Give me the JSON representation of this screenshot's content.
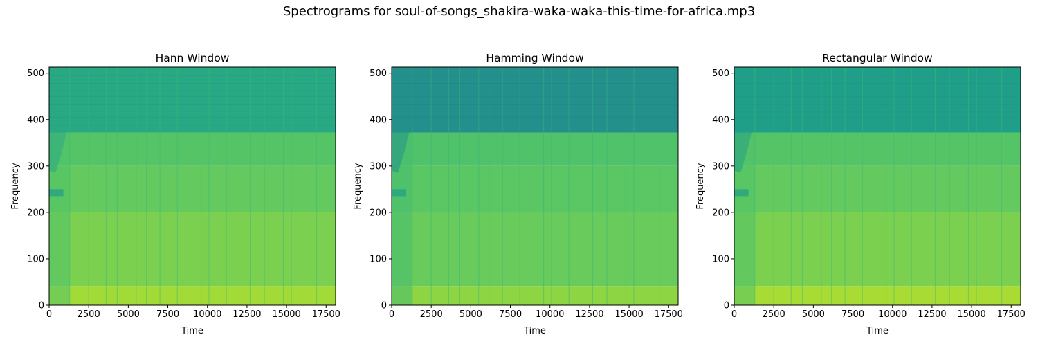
{
  "figure": {
    "suptitle": "Spectrograms for soul-of-songs_shakira-waka-waka-this-time-for-africa.mp3"
  },
  "chart_data": [
    {
      "type": "heatmap",
      "title": "Hann Window",
      "xlabel": "Time",
      "ylabel": "Frequency",
      "xlim": [
        0,
        18100
      ],
      "ylim": [
        0,
        513
      ],
      "xticks": [
        0,
        2500,
        5000,
        7500,
        10000,
        12500,
        15000,
        17500
      ],
      "yticks": [
        0,
        100,
        200,
        300,
        400,
        500
      ],
      "colormap": "viridis",
      "bands": [
        {
          "from": 0,
          "to": 40,
          "level": 0.86
        },
        {
          "from": 40,
          "to": 200,
          "level": 0.8
        },
        {
          "from": 200,
          "to": 300,
          "level": 0.76
        },
        {
          "from": 300,
          "to": 372,
          "level": 0.73
        },
        {
          "from": 372,
          "to": 513,
          "level": 0.6
        }
      ]
    },
    {
      "type": "heatmap",
      "title": "Hamming Window",
      "xlabel": "Time",
      "ylabel": "Frequency",
      "xlim": [
        0,
        18100
      ],
      "ylim": [
        0,
        513
      ],
      "xticks": [
        0,
        2500,
        5000,
        7500,
        10000,
        12500,
        15000,
        17500
      ],
      "yticks": [
        0,
        100,
        200,
        300,
        400,
        500
      ],
      "colormap": "viridis",
      "bands": [
        {
          "from": 0,
          "to": 40,
          "level": 0.83
        },
        {
          "from": 40,
          "to": 200,
          "level": 0.77
        },
        {
          "from": 200,
          "to": 300,
          "level": 0.74
        },
        {
          "from": 300,
          "to": 372,
          "level": 0.72
        },
        {
          "from": 372,
          "to": 513,
          "level": 0.5
        }
      ]
    },
    {
      "type": "heatmap",
      "title": "Rectangular Window",
      "xlabel": "Time",
      "ylabel": "Frequency",
      "xlim": [
        0,
        18100
      ],
      "ylim": [
        0,
        513
      ],
      "xticks": [
        0,
        2500,
        5000,
        7500,
        10000,
        12500,
        15000,
        17500
      ],
      "yticks": [
        0,
        100,
        200,
        300,
        400,
        500
      ],
      "colormap": "viridis",
      "bands": [
        {
          "from": 0,
          "to": 40,
          "level": 0.87
        },
        {
          "from": 40,
          "to": 200,
          "level": 0.8
        },
        {
          "from": 200,
          "to": 300,
          "level": 0.76
        },
        {
          "from": 300,
          "to": 372,
          "level": 0.73
        },
        {
          "from": 372,
          "to": 513,
          "level": 0.56
        }
      ]
    }
  ]
}
